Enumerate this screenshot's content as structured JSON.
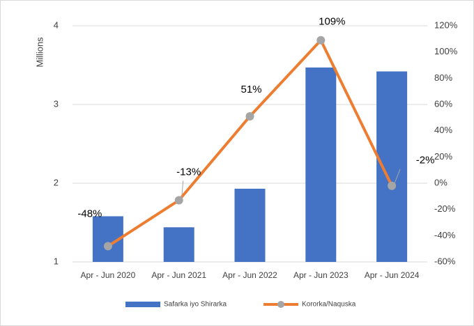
{
  "chart_data": {
    "type": "bar",
    "y_label": "Millions",
    "categories": [
      "Apr - Jun 2020",
      "Apr - Jun 2021",
      "Apr - Jun 2022",
      "Apr - Jun 2023",
      "Apr - Jun 2024"
    ],
    "series": [
      {
        "name": "Safarka iyo Shirarka",
        "type": "bar",
        "color": "#4472c4",
        "values": [
          1.58,
          1.44,
          1.93,
          3.47,
          3.42
        ]
      },
      {
        "name": "Kororka/Naquska",
        "type": "line",
        "axis": "y2",
        "color": "#ed7d31",
        "marker_color": "#a5a5a5",
        "values": [
          -48,
          -13,
          51,
          109,
          -2
        ],
        "value_labels": [
          "-48%",
          "-13%",
          "51%",
          "109%",
          "-2%"
        ]
      }
    ],
    "ylim": [
      1,
      4
    ],
    "yticks": [
      1,
      2,
      3,
      4
    ],
    "y2lim": [
      -60,
      120
    ],
    "y2ticks": [
      {
        "value": -60,
        "label": "-60%"
      },
      {
        "value": -40,
        "label": "-40%"
      },
      {
        "value": -20,
        "label": "-20%"
      },
      {
        "value": 0,
        "label": "0%"
      },
      {
        "value": 20,
        "label": "20%"
      },
      {
        "value": 40,
        "label": "40%"
      },
      {
        "value": 60,
        "label": "60%"
      },
      {
        "value": 80,
        "label": "80%"
      },
      {
        "value": 100,
        "label": "100%"
      },
      {
        "value": 120,
        "label": "120%"
      }
    ],
    "grid": true,
    "legend": "bottom"
  }
}
